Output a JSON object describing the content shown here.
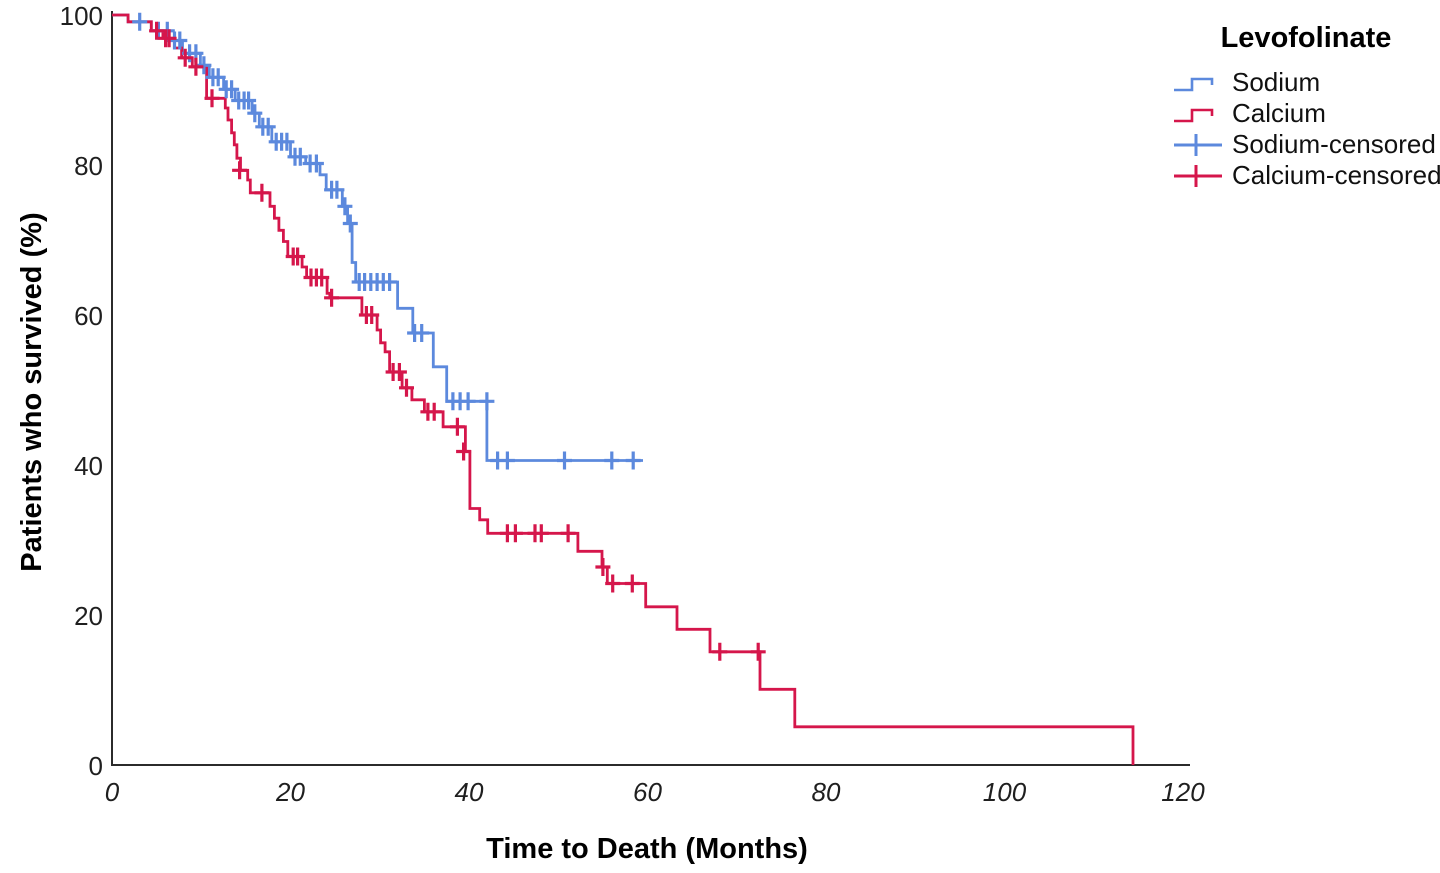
{
  "colors": {
    "sodium_blue": "#5C89DD",
    "calcium_red": "#D5164B",
    "axis": "#2b2b2b",
    "tick_text": "#1f1f1f"
  },
  "chart_data": {
    "type": "line",
    "subtype": "kaplan-meier-step-survival",
    "title": "",
    "xlabel": "Time to Death (Months)",
    "ylabel": "Patients who survived (%)",
    "xlim": [
      0,
      120
    ],
    "ylim": [
      0,
      100
    ],
    "xticks": [
      0,
      20,
      40,
      60,
      80,
      100,
      120
    ],
    "yticks": [
      0,
      20,
      40,
      60,
      80,
      100
    ],
    "grid": false,
    "legend": {
      "title": "Levofolinate",
      "position": "top-right",
      "entries": [
        {
          "label": "Sodium",
          "color": "#5C89DD",
          "symbol": "step-line"
        },
        {
          "label": "Calcium",
          "color": "#D5164B",
          "symbol": "step-line"
        },
        {
          "label": "Sodium-censored",
          "color": "#5C89DD",
          "symbol": "plus"
        },
        {
          "label": "Calcium-censored",
          "color": "#D5164B",
          "symbol": "plus"
        }
      ]
    },
    "series": [
      {
        "name": "Sodium",
        "kind": "step",
        "color": "#5C89DD",
        "points": [
          [
            0,
            100
          ],
          [
            1.8,
            99.1
          ],
          [
            4.4,
            97.9
          ],
          [
            6.3,
            96.6
          ],
          [
            7.9,
            94.9
          ],
          [
            9.9,
            93.3
          ],
          [
            10.9,
            91.7
          ],
          [
            12.5,
            90.1
          ],
          [
            13.8,
            88.6
          ],
          [
            15.7,
            86.9
          ],
          [
            16.5,
            85.1
          ],
          [
            17.9,
            83.1
          ],
          [
            20,
            81.1
          ],
          [
            21.7,
            80.2
          ],
          [
            23.3,
            78.7
          ],
          [
            24,
            76.7
          ],
          [
            25.8,
            74.5
          ],
          [
            26.4,
            72.2
          ],
          [
            26.9,
            67
          ],
          [
            27.3,
            64.4
          ],
          [
            32,
            60.9
          ],
          [
            33.7,
            57.6
          ],
          [
            36,
            53.1
          ],
          [
            37.5,
            48.5
          ],
          [
            42,
            40.6
          ],
          [
            59.5,
            40.6
          ]
        ]
      },
      {
        "name": "Calcium",
        "kind": "step",
        "color": "#D5164B",
        "points": [
          [
            0,
            100
          ],
          [
            1.8,
            99.1
          ],
          [
            4.4,
            97.9
          ],
          [
            5.7,
            96.9
          ],
          [
            7,
            95.6
          ],
          [
            7.8,
            94.3
          ],
          [
            9,
            93.1
          ],
          [
            10.6,
            88.9
          ],
          [
            12.7,
            87.6
          ],
          [
            13,
            86
          ],
          [
            13.4,
            84.3
          ],
          [
            13.7,
            82.7
          ],
          [
            14,
            80.9
          ],
          [
            14.4,
            79.3
          ],
          [
            15.2,
            78
          ],
          [
            15.5,
            76.3
          ],
          [
            17.7,
            74.5
          ],
          [
            18.2,
            72.9
          ],
          [
            18.7,
            71.3
          ],
          [
            19.2,
            69.8
          ],
          [
            19.7,
            67.8
          ],
          [
            21.3,
            66.4
          ],
          [
            21.8,
            65
          ],
          [
            24.1,
            62.9
          ],
          [
            24.4,
            62.3
          ],
          [
            28,
            60
          ],
          [
            29.7,
            58
          ],
          [
            30.1,
            56.3
          ],
          [
            30.6,
            55.1
          ],
          [
            31.1,
            52.4
          ],
          [
            32.5,
            50.3
          ],
          [
            33.6,
            48.7
          ],
          [
            35,
            47.1
          ],
          [
            37.1,
            45.1
          ],
          [
            39.6,
            41.8
          ],
          [
            40.1,
            34.2
          ],
          [
            41.2,
            32.7
          ],
          [
            42.1,
            30.9
          ],
          [
            52.2,
            28.5
          ],
          [
            54.9,
            26.4
          ],
          [
            55.5,
            24.2
          ],
          [
            59.8,
            21.1
          ],
          [
            63.3,
            18.1
          ],
          [
            67,
            15.1
          ],
          [
            72.6,
            10.1
          ],
          [
            76.5,
            5.1
          ],
          [
            114.4,
            0
          ]
        ]
      },
      {
        "name": "Sodium-censored",
        "kind": "censor",
        "color": "#5C89DD",
        "points": [
          [
            3.1,
            99.1
          ],
          [
            5.2,
            97.9
          ],
          [
            6.2,
            97.9
          ],
          [
            7,
            96.6
          ],
          [
            7.6,
            96.6
          ],
          [
            8.7,
            94.9
          ],
          [
            9.4,
            94.9
          ],
          [
            10.3,
            93.3
          ],
          [
            11.3,
            91.7
          ],
          [
            11.9,
            91.7
          ],
          [
            12.8,
            90.1
          ],
          [
            13.4,
            90.1
          ],
          [
            14.2,
            88.6
          ],
          [
            14.8,
            88.6
          ],
          [
            15.3,
            88.6
          ],
          [
            16,
            86.9
          ],
          [
            16.9,
            85.1
          ],
          [
            17.5,
            85.1
          ],
          [
            18.4,
            83.1
          ],
          [
            19,
            83.1
          ],
          [
            19.6,
            83.1
          ],
          [
            20.5,
            81.1
          ],
          [
            21.1,
            81.1
          ],
          [
            22.2,
            80.2
          ],
          [
            22.9,
            80.2
          ],
          [
            24.6,
            76.7
          ],
          [
            25.2,
            76.7
          ],
          [
            26.1,
            74.5
          ],
          [
            26.7,
            72.2
          ],
          [
            27.7,
            64.4
          ],
          [
            28.3,
            64.4
          ],
          [
            29,
            64.4
          ],
          [
            29.7,
            64.4
          ],
          [
            30.4,
            64.4
          ],
          [
            31.1,
            64.4
          ],
          [
            33.9,
            57.6
          ],
          [
            34.7,
            57.6
          ],
          [
            38.2,
            48.5
          ],
          [
            39,
            48.5
          ],
          [
            39.9,
            48.5
          ],
          [
            42,
            48.5
          ],
          [
            43.2,
            40.6
          ],
          [
            44.3,
            40.6
          ],
          [
            50.7,
            40.6
          ],
          [
            56,
            40.6
          ],
          [
            58.4,
            40.6
          ]
        ]
      },
      {
        "name": "Calcium-censored",
        "kind": "censor",
        "color": "#D5164B",
        "points": [
          [
            5,
            97.9
          ],
          [
            6,
            96.9
          ],
          [
            6.4,
            96.9
          ],
          [
            8.2,
            94.3
          ],
          [
            9.4,
            93.1
          ],
          [
            11.2,
            88.9
          ],
          [
            14.3,
            79.3
          ],
          [
            16.8,
            76.3
          ],
          [
            20.3,
            67.8
          ],
          [
            20.8,
            67.8
          ],
          [
            22.3,
            65
          ],
          [
            22.9,
            65
          ],
          [
            23.5,
            65
          ],
          [
            24.6,
            62.3
          ],
          [
            28.5,
            60
          ],
          [
            29.1,
            60
          ],
          [
            31.5,
            52.4
          ],
          [
            32.2,
            52.4
          ],
          [
            33,
            50.3
          ],
          [
            35.4,
            47.1
          ],
          [
            36.1,
            47.1
          ],
          [
            38.7,
            45.1
          ],
          [
            39.4,
            41.8
          ],
          [
            44.3,
            30.9
          ],
          [
            45.2,
            30.9
          ],
          [
            47.4,
            30.9
          ],
          [
            48.1,
            30.9
          ],
          [
            51.1,
            30.9
          ],
          [
            55,
            26.4
          ],
          [
            56.1,
            24.2
          ],
          [
            58.3,
            24.2
          ],
          [
            68.1,
            15.1
          ],
          [
            72.4,
            15.1
          ]
        ]
      }
    ]
  }
}
